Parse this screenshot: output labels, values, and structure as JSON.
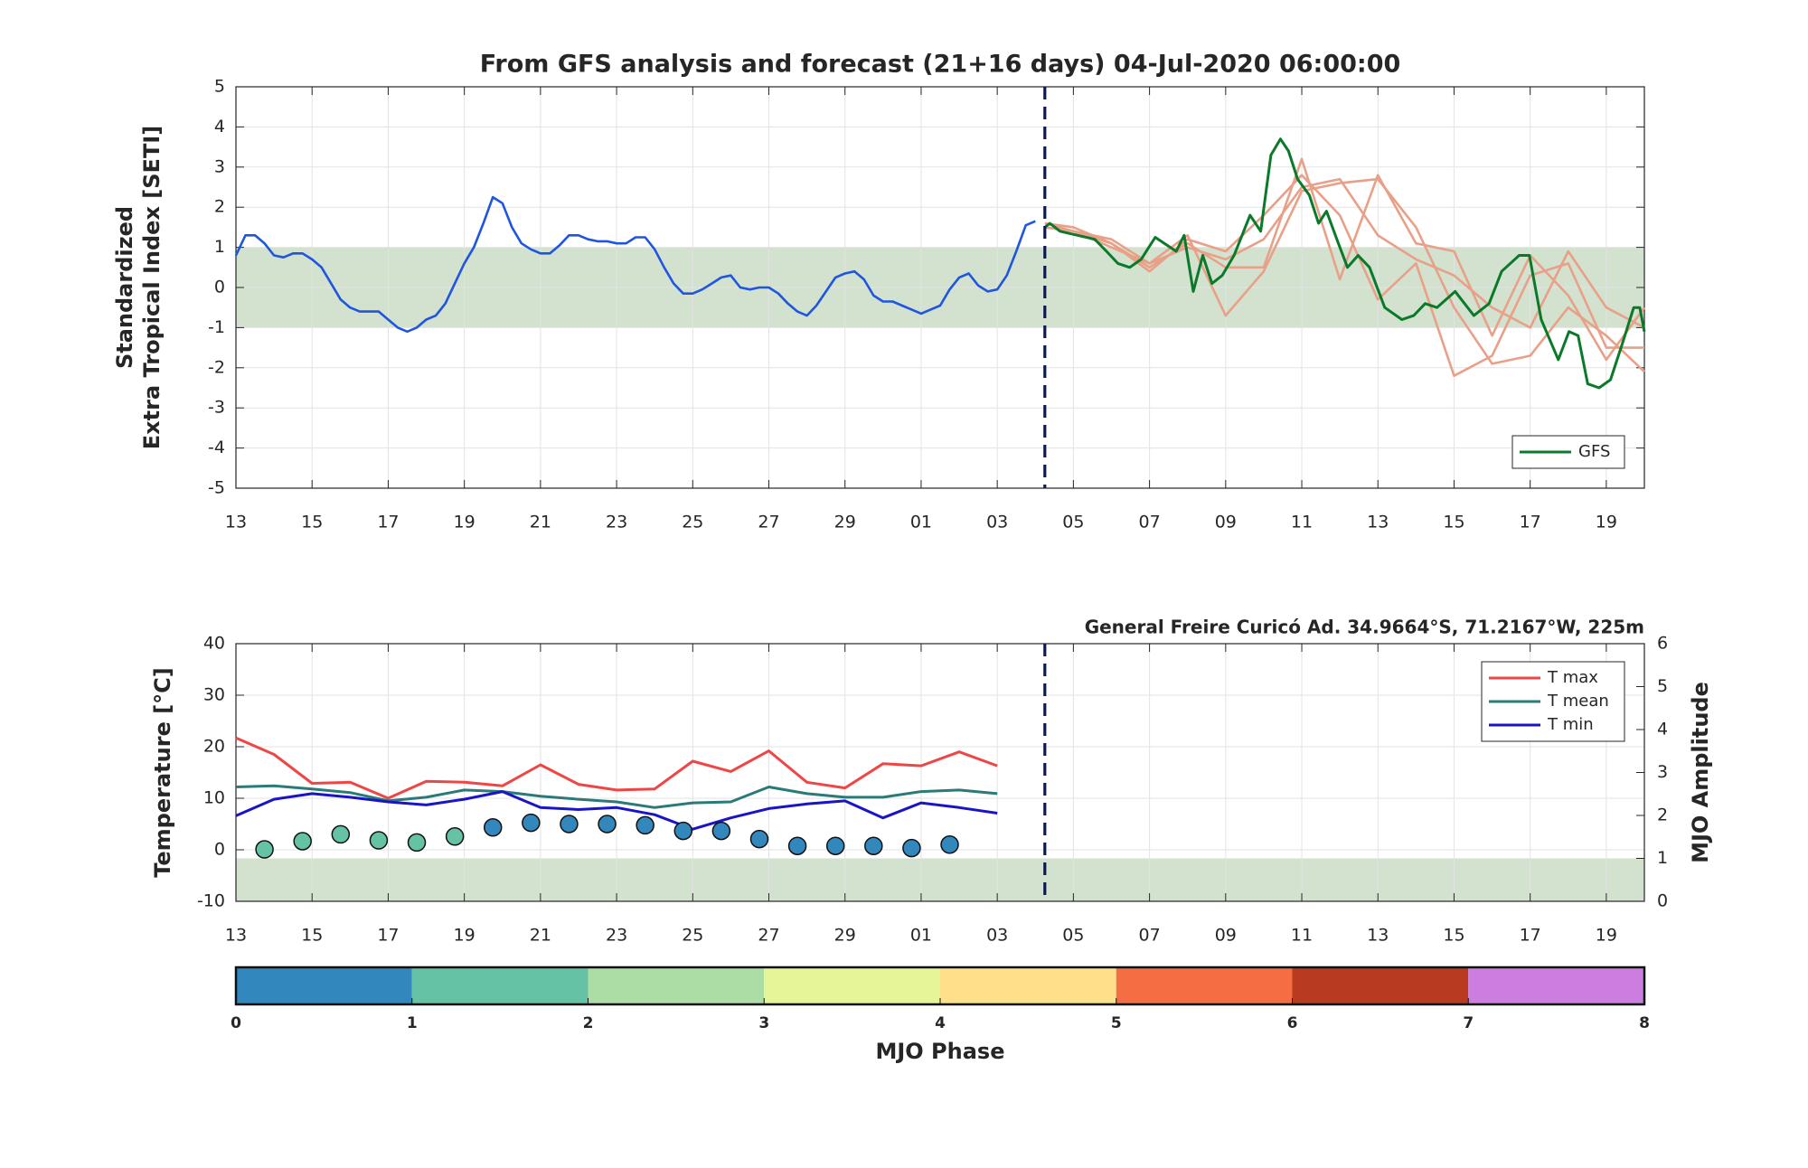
{
  "chart_data": [
    {
      "type": "line",
      "title": "From GFS analysis and forecast (21+16 days) 04-Jul-2020 06:00:00",
      "ylabel": [
        "Standardized",
        "Extra Tropical Index [SETI]"
      ],
      "xlim": [
        0,
        37
      ],
      "ylim": [
        -5,
        5
      ],
      "xticks": [
        {
          "value": 0,
          "label": "13"
        },
        {
          "value": 2,
          "label": "15"
        },
        {
          "value": 4,
          "label": "17"
        },
        {
          "value": 6,
          "label": "19"
        },
        {
          "value": 8,
          "label": "21"
        },
        {
          "value": 10,
          "label": "23"
        },
        {
          "value": 12,
          "label": "25"
        },
        {
          "value": 14,
          "label": "27"
        },
        {
          "value": 16,
          "label": "29"
        },
        {
          "value": 18,
          "label": "01"
        },
        {
          "value": 20,
          "label": "03"
        },
        {
          "value": 22,
          "label": "05"
        },
        {
          "value": 24,
          "label": "07"
        },
        {
          "value": 26,
          "label": "09"
        },
        {
          "value": 28,
          "label": "11"
        },
        {
          "value": 30,
          "label": "13"
        },
        {
          "value": 32,
          "label": "15"
        },
        {
          "value": 34,
          "label": "17"
        },
        {
          "value": 36,
          "label": "19"
        }
      ],
      "yticks": [
        -5,
        -4,
        -3,
        -2,
        -1,
        0,
        1,
        2,
        3,
        4,
        5
      ],
      "grid": true,
      "band": [
        -1,
        1
      ],
      "band_color": "#d2e2cf",
      "forecast_start": 21.25,
      "legend": "lower right",
      "series": [
        {
          "color": "#e9a088",
          "x": [
            21.25,
            22,
            23,
            24,
            25,
            26,
            27,
            28,
            29,
            30,
            31,
            32,
            33,
            34,
            35,
            36,
            37
          ],
          "values": [
            1.6,
            1.4,
            1.0,
            0.6,
            1.3,
            -0.7,
            0.4,
            2.4,
            2.6,
            2.7,
            1.5,
            -0.5,
            -1.9,
            -1.7,
            -0.5,
            -1.2,
            -2.1
          ]
        },
        {
          "color": "#e9a088",
          "x": [
            21.25,
            22,
            23,
            24,
            25,
            26,
            27,
            28,
            29,
            30,
            31,
            32,
            33,
            34,
            35,
            36,
            37
          ],
          "values": [
            1.5,
            1.4,
            1.1,
            0.4,
            1.2,
            0.9,
            1.8,
            2.8,
            1.8,
            -0.3,
            0.6,
            -2.2,
            -1.7,
            0.3,
            0.6,
            -1.5,
            -1.5
          ]
        },
        {
          "color": "#e9a088",
          "x": [
            21.25,
            22,
            23,
            24,
            25,
            26,
            27,
            28,
            29,
            30,
            31,
            32,
            33,
            34,
            35,
            36,
            37
          ],
          "values": [
            1.6,
            1.5,
            1.1,
            0.5,
            1.1,
            0.5,
            0.5,
            3.2,
            0.2,
            2.8,
            1.1,
            0.9,
            -1.2,
            0.8,
            -0.2,
            -1.8,
            -0.5
          ]
        },
        {
          "color": "#e9a088",
          "x": [
            21.25,
            22,
            23,
            24,
            25,
            26,
            27,
            28,
            29,
            30,
            31,
            32,
            33,
            34,
            35,
            36,
            37
          ],
          "values": [
            1.5,
            1.4,
            1.2,
            0.6,
            1.0,
            0.7,
            1.2,
            2.5,
            2.7,
            1.3,
            0.7,
            0.3,
            -0.5,
            -1.0,
            0.9,
            -0.5,
            -1.0
          ]
        },
        {
          "color": "#1f55e0",
          "x": [
            0,
            0.25,
            0.5,
            0.75,
            1,
            1.25,
            1.5,
            1.75,
            2,
            2.25,
            2.5,
            2.75,
            3,
            3.25,
            3.5,
            3.75,
            4,
            4.25,
            4.5,
            4.75,
            5,
            5.25,
            5.5,
            5.75,
            6,
            6.25,
            6.5,
            6.75,
            7,
            7.25,
            7.5,
            7.75,
            8,
            8.25,
            8.5,
            8.75,
            9,
            9.25,
            9.5,
            9.75,
            10,
            10.25,
            10.5,
            10.75,
            11,
            11.25,
            11.5,
            11.75,
            12,
            12.25,
            12.5,
            12.75,
            13,
            13.25,
            13.5,
            13.75,
            14,
            14.25,
            14.5,
            14.75,
            15,
            15.25,
            15.5,
            15.75,
            16,
            16.25,
            16.5,
            16.75,
            17,
            17.25,
            17.5,
            17.75,
            18,
            18.25,
            18.5,
            18.75,
            19,
            19.25,
            19.5,
            19.75,
            20,
            20.25,
            20.5,
            20.75,
            21
          ],
          "values": [
            0.8,
            1.3,
            1.3,
            1.1,
            0.8,
            0.75,
            0.85,
            0.85,
            0.7,
            0.5,
            0.1,
            -0.3,
            -0.5,
            -0.6,
            -0.6,
            -0.6,
            -0.8,
            -1.0,
            -1.1,
            -1.0,
            -0.8,
            -0.7,
            -0.4,
            0.1,
            0.6,
            1.0,
            1.6,
            2.25,
            2.1,
            1.5,
            1.1,
            0.95,
            0.85,
            0.85,
            1.05,
            1.3,
            1.3,
            1.2,
            1.15,
            1.15,
            1.1,
            1.1,
            1.25,
            1.25,
            0.95,
            0.5,
            0.1,
            -0.15,
            -0.15,
            -0.05,
            0.1,
            0.25,
            0.3,
            0.0,
            -0.05,
            0.0,
            0.0,
            -0.15,
            -0.4,
            -0.6,
            -0.7,
            -0.45,
            -0.1,
            0.25,
            0.35,
            0.4,
            0.2,
            -0.2,
            -0.35,
            -0.35,
            -0.45,
            -0.55,
            -0.65,
            -0.55,
            -0.45,
            -0.05,
            0.25,
            0.35,
            0.05,
            -0.1,
            -0.05,
            0.3,
            0.9,
            1.55,
            1.65
          ]
        },
        {
          "name": "GFS",
          "color": "#0a7a2a",
          "x": [
            21.25,
            21.38,
            21.65,
            22.11,
            22.56,
            22.87,
            23.17,
            23.48,
            23.78,
            24.15,
            24.7,
            24.91,
            25.15,
            25.4,
            25.64,
            25.91,
            26.22,
            26.64,
            26.92,
            27.19,
            27.44,
            27.65,
            27.89,
            28.2,
            28.44,
            28.65,
            28.96,
            29.2,
            29.48,
            29.78,
            30.18,
            30.63,
            30.94,
            31.24,
            31.55,
            32.03,
            32.52,
            32.92,
            33.25,
            33.71,
            33.98,
            34.29,
            34.74,
            35.02,
            35.26,
            35.51,
            35.81,
            36.11,
            36.42,
            36.72,
            36.88,
            37
          ],
          "values": [
            1.5,
            1.6,
            1.4,
            1.3,
            1.2,
            0.9,
            0.6,
            0.5,
            0.7,
            1.25,
            0.9,
            1.3,
            -0.1,
            0.8,
            0.1,
            0.3,
            0.8,
            1.8,
            1.4,
            3.3,
            3.7,
            3.4,
            2.7,
            2.3,
            1.6,
            1.9,
            1.1,
            0.5,
            0.8,
            0.5,
            -0.5,
            -0.8,
            -0.7,
            -0.4,
            -0.5,
            -0.1,
            -0.7,
            -0.4,
            0.4,
            0.8,
            0.8,
            -0.8,
            -1.8,
            -1.1,
            -1.2,
            -2.4,
            -2.5,
            -2.3,
            -1.4,
            -0.5,
            -0.5,
            -1.1
          ]
        }
      ]
    },
    {
      "type": "line",
      "ylabel": "Temperature [°C]",
      "y2label": "MJO Amplitude",
      "annotation": "General Freire Curicó Ad. 34.9664°S, 71.2167°W, 225m",
      "xlim": [
        0,
        37
      ],
      "ylim": [
        -10,
        40
      ],
      "y2lim": [
        0,
        6
      ],
      "xticks": [
        {
          "value": 0,
          "label": "13"
        },
        {
          "value": 2,
          "label": "15"
        },
        {
          "value": 4,
          "label": "17"
        },
        {
          "value": 6,
          "label": "19"
        },
        {
          "value": 8,
          "label": "21"
        },
        {
          "value": 10,
          "label": "23"
        },
        {
          "value": 12,
          "label": "25"
        },
        {
          "value": 14,
          "label": "27"
        },
        {
          "value": 16,
          "label": "29"
        },
        {
          "value": 18,
          "label": "01"
        },
        {
          "value": 20,
          "label": "03"
        },
        {
          "value": 22,
          "label": "05"
        },
        {
          "value": 24,
          "label": "07"
        },
        {
          "value": 26,
          "label": "09"
        },
        {
          "value": 28,
          "label": "11"
        },
        {
          "value": 30,
          "label": "13"
        },
        {
          "value": 32,
          "label": "15"
        },
        {
          "value": 34,
          "label": "17"
        },
        {
          "value": 36,
          "label": "19"
        }
      ],
      "yticks": [
        -10,
        0,
        10,
        20,
        30,
        40
      ],
      "y2ticks": [
        0,
        1,
        2,
        3,
        4,
        5,
        6
      ],
      "grid": true,
      "band": [
        0,
        1
      ],
      "band_axis": "y2",
      "band_color": "#d2e2cf",
      "forecast_start": 21.25,
      "legend": "upper right",
      "x": [
        0,
        1,
        2,
        3,
        4,
        5,
        6,
        7,
        8,
        9,
        10,
        11,
        12,
        13,
        14,
        15,
        16,
        17,
        18,
        19,
        20
      ],
      "series": [
        {
          "name": "T max",
          "color": "#f04545",
          "values": [
            21.7,
            18.5,
            12.9,
            13.1,
            10,
            13.3,
            13.1,
            12.4,
            16.5,
            12.7,
            11.6,
            11.8,
            17.2,
            15.2,
            19.2,
            13.1,
            12,
            16.7,
            16.3,
            19,
            16.3
          ]
        },
        {
          "name": "T mean",
          "color": "#2a7a78",
          "values": [
            12.2,
            12.4,
            11.8,
            11.1,
            9.5,
            10.2,
            11.6,
            11.3,
            10.4,
            9.8,
            9.3,
            8.2,
            9.1,
            9.3,
            12.2,
            10.9,
            10.2,
            10.2,
            11.3,
            11.6,
            10.9
          ]
        },
        {
          "name": "T min",
          "color": "#1a14c8",
          "values": [
            6.6,
            9.8,
            10.9,
            10.2,
            9.3,
            8.7,
            9.8,
            11.3,
            8.2,
            7.8,
            8.2,
            6.8,
            4.0,
            6.2,
            8.0,
            8.9,
            9.5,
            6.2,
            9.1,
            8.2,
            7.1
          ]
        },
        {
          "type": "scatter",
          "axis": "y2",
          "x": [
            0.75,
            1.75,
            2.75,
            3.75,
            4.75,
            5.75,
            6.75,
            7.75,
            8.75,
            9.75,
            10.75,
            11.75,
            12.75,
            13.75,
            14.75,
            15.75,
            16.75,
            17.75,
            18.75
          ],
          "values": [
            1.21,
            1.4,
            1.56,
            1.42,
            1.37,
            1.51,
            1.72,
            1.83,
            1.8,
            1.8,
            1.77,
            1.64,
            1.64,
            1.45,
            1.29,
            1.29,
            1.29,
            1.24,
            1.32
          ],
          "phases": [
            1.5,
            1.5,
            1.5,
            1.5,
            1.5,
            1.5,
            0.9,
            0.9,
            0.5,
            0.5,
            0.5,
            0.5,
            0.5,
            0.5,
            0.5,
            0.5,
            0.5,
            0.5,
            0.5
          ]
        }
      ]
    },
    {
      "type": "colorbar",
      "label": "MJO Phase",
      "xlim": [
        0,
        8
      ],
      "xticks": [
        0,
        1,
        2,
        3,
        4,
        5,
        6,
        7,
        8
      ],
      "colors": [
        "#3288bd",
        "#66c2a5",
        "#abdda4",
        "#e6f598",
        "#fee08b",
        "#f46d43",
        "#b83b21",
        "#cc7ee0"
      ]
    }
  ]
}
